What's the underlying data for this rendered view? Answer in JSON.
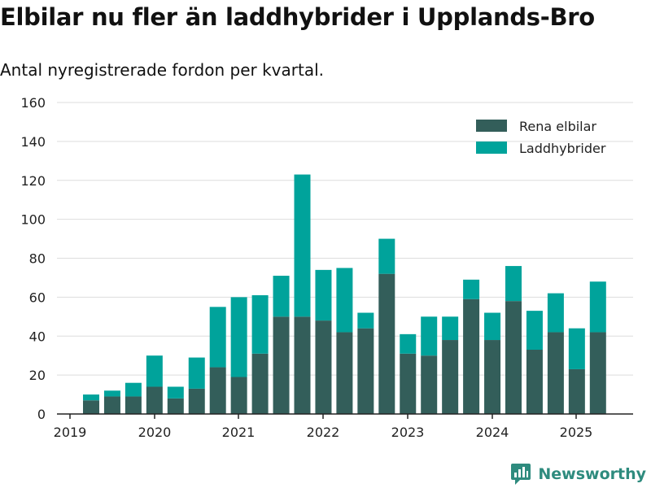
{
  "title": "Elbilar nu fler än laddhybrider i Upplands-Bro",
  "subtitle": "Antal nyregistrerade fordon per kvartal.",
  "brand": "Newsworthy",
  "icons": {
    "brand_logo": "newsworthy-logo-icon"
  },
  "colors": {
    "rena_elbilar": "#335e5a",
    "laddhybrider": "#00a39b",
    "grid": "#dddddd",
    "axis": "#222222",
    "brand": "#2e8b7e"
  },
  "chart_data": {
    "type": "bar",
    "stacked": true,
    "categories": [
      "2019 Q2",
      "2019 Q3",
      "2019 Q4",
      "2020 Q1",
      "2020 Q2",
      "2020 Q3",
      "2020 Q4",
      "2021 Q1",
      "2021 Q2",
      "2021 Q3",
      "2021 Q4",
      "2022 Q1",
      "2022 Q2",
      "2022 Q3",
      "2022 Q4",
      "2023 Q1",
      "2023 Q2",
      "2023 Q3",
      "2023 Q4",
      "2024 Q1",
      "2024 Q2",
      "2024 Q3",
      "2024 Q4",
      "2025 Q1",
      "2025 Q2"
    ],
    "series": [
      {
        "name": "Rena elbilar",
        "values": [
          7,
          9,
          9,
          14,
          8,
          13,
          24,
          19,
          31,
          50,
          50,
          48,
          42,
          44,
          72,
          31,
          30,
          38,
          59,
          38,
          58,
          33,
          42,
          23,
          42
        ]
      },
      {
        "name": "Laddhybrider",
        "values": [
          3,
          3,
          7,
          16,
          6,
          16,
          31,
          41,
          30,
          21,
          73,
          26,
          33,
          8,
          18,
          10,
          20,
          12,
          10,
          14,
          18,
          20,
          20,
          21,
          26
        ]
      }
    ],
    "x_tick_labels": [
      "2019",
      "2020",
      "2021",
      "2022",
      "2023",
      "2024",
      "2025"
    ],
    "y_ticks": [
      0,
      20,
      40,
      60,
      80,
      100,
      120,
      140,
      160
    ],
    "ylim": [
      0,
      160
    ],
    "grid": true,
    "legend_position": "top-right"
  }
}
